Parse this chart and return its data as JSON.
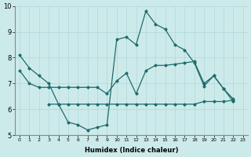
{
  "xlabel": "Humidex (Indice chaleur)",
  "xlim": [
    -0.5,
    23.5
  ],
  "ylim": [
    5,
    10
  ],
  "yticks": [
    5,
    6,
    7,
    8,
    9,
    10
  ],
  "xticks": [
    0,
    1,
    2,
    3,
    4,
    5,
    6,
    7,
    8,
    9,
    10,
    11,
    12,
    13,
    14,
    15,
    16,
    17,
    18,
    19,
    20,
    21,
    22,
    23
  ],
  "bg_color": "#cdeaea",
  "line_color": "#1e6b6b",
  "grid_color": "#b0d8d8",
  "lines": [
    {
      "x": [
        0,
        1,
        2,
        3,
        4,
        5,
        6,
        7,
        8,
        9,
        10,
        11,
        12,
        13,
        14,
        15,
        16,
        17,
        18,
        19,
        20,
        21,
        22
      ],
      "y": [
        8.1,
        7.6,
        7.3,
        7.0,
        6.2,
        5.5,
        5.4,
        5.2,
        5.3,
        5.4,
        8.7,
        8.8,
        8.5,
        9.8,
        9.3,
        9.1,
        8.5,
        8.3,
        7.8,
        6.9,
        7.3,
        6.8,
        6.3
      ]
    },
    {
      "x": [
        0,
        1,
        2,
        3,
        4,
        5,
        6,
        7,
        8,
        9,
        10,
        11,
        12,
        13,
        14,
        15,
        16,
        17,
        18,
        19,
        20,
        21,
        22
      ],
      "y": [
        7.5,
        7.0,
        6.85,
        6.85,
        6.85,
        6.85,
        6.85,
        6.85,
        6.85,
        6.6,
        7.1,
        7.4,
        6.6,
        7.5,
        7.7,
        7.7,
        7.75,
        7.8,
        7.85,
        7.0,
        7.3,
        6.8,
        6.4
      ]
    },
    {
      "x": [
        3,
        4,
        5,
        6,
        7,
        8,
        9,
        10,
        11,
        12,
        13,
        14,
        15,
        16,
        17,
        18,
        19,
        20,
        21,
        22
      ],
      "y": [
        6.2,
        6.2,
        6.2,
        6.2,
        6.2,
        6.2,
        6.2,
        6.2,
        6.2,
        6.2,
        6.2,
        6.2,
        6.2,
        6.2,
        6.2,
        6.2,
        6.3,
        6.3,
        6.3,
        6.35
      ]
    }
  ]
}
